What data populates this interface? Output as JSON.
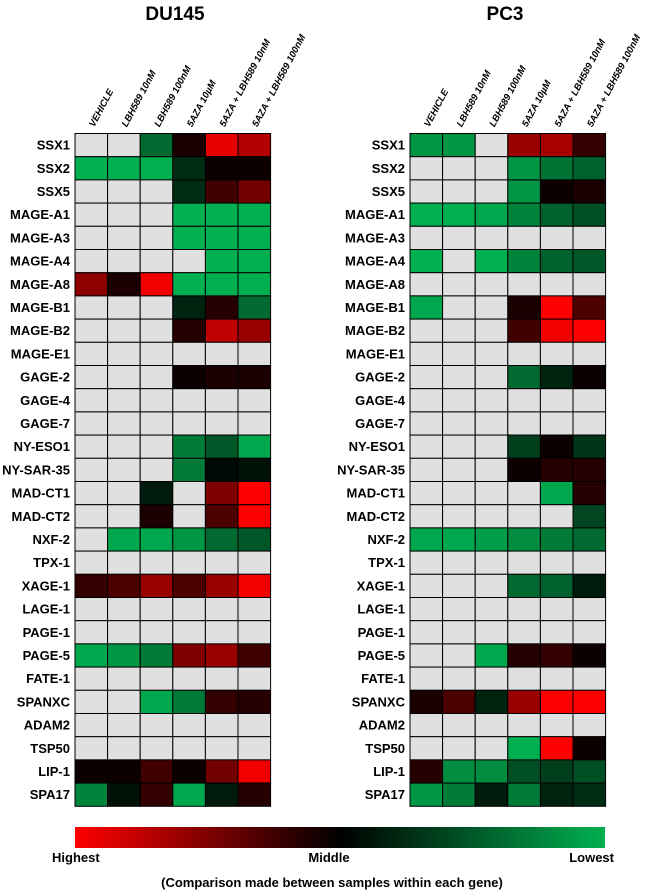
{
  "chart_data": {
    "type": "heatmap",
    "genes": [
      "SSX1",
      "SSX2",
      "SSX5",
      "MAGE-A1",
      "MAGE-A3",
      "MAGE-A4",
      "MAGE-A8",
      "MAGE-B1",
      "MAGE-B2",
      "MAGE-E1",
      "GAGE-2",
      "GAGE-4",
      "GAGE-7",
      "NY-ESO1",
      "NY-SAR-35",
      "MAD-CT1",
      "MAD-CT2",
      "NXF-2",
      "TPX-1",
      "XAGE-1",
      "LAGE-1",
      "PAGE-1",
      "PAGE-5",
      "FATE-1",
      "SPANXC",
      "ADAM2",
      "TSP50",
      "LIP-1",
      "SPA17"
    ],
    "samples": [
      "VEHICLE",
      "LBH589 10nM",
      "LBH589 100nM",
      "5AZA 10µM",
      "5AZA + LBH589 10nM",
      "5AZA + LBH589 100nM"
    ],
    "colors": {
      "highest": "#ff0000",
      "middle": "#000000",
      "lowest": "#00b050",
      "not_detected": "#e0e0e0"
    },
    "value_scale": "+1 = Highest (red), 0 = Middle (black), -1 = Lowest (green), null = grey",
    "panels": [
      {
        "title": "DU145",
        "values": [
          [
            null,
            null,
            -0.6,
            0.1,
            0.9,
            0.7
          ],
          [
            -1,
            -1,
            -1,
            -0.25,
            0.05,
            0.05
          ],
          [
            null,
            null,
            null,
            -0.25,
            0.25,
            0.45
          ],
          [
            null,
            null,
            null,
            -1,
            -1,
            -1
          ],
          [
            null,
            null,
            null,
            -1,
            -1,
            -1
          ],
          [
            null,
            null,
            null,
            null,
            -1,
            -1
          ],
          [
            0.55,
            0.1,
            0.95,
            -1,
            -1,
            -1
          ],
          [
            null,
            null,
            null,
            -0.2,
            0.15,
            -0.6
          ],
          [
            null,
            null,
            null,
            0.15,
            0.75,
            0.6
          ],
          [
            null,
            null,
            null,
            null,
            null,
            null
          ],
          [
            null,
            null,
            null,
            0.05,
            0.1,
            0.1
          ],
          [
            null,
            null,
            null,
            null,
            null,
            null
          ],
          [
            null,
            null,
            null,
            null,
            null,
            null
          ],
          [
            null,
            null,
            null,
            -0.7,
            -0.5,
            -0.95
          ],
          [
            null,
            null,
            null,
            -0.7,
            -0.05,
            -0.1
          ],
          [
            null,
            null,
            -0.15,
            null,
            0.5,
            1
          ],
          [
            null,
            null,
            0.1,
            null,
            0.3,
            1
          ],
          [
            null,
            -0.95,
            -0.95,
            -0.85,
            -0.6,
            -0.5
          ],
          [
            null,
            null,
            null,
            null,
            null,
            null
          ],
          [
            0.2,
            0.3,
            0.6,
            0.3,
            0.6,
            0.95
          ],
          [
            null,
            null,
            null,
            null,
            null,
            null
          ],
          [
            null,
            null,
            null,
            null,
            null,
            null
          ],
          [
            -0.95,
            -0.85,
            -0.7,
            0.5,
            0.6,
            0.25
          ],
          [
            null,
            null,
            null,
            null,
            null,
            null
          ],
          [
            null,
            null,
            -0.95,
            -0.7,
            0.2,
            0.15
          ],
          [
            null,
            null,
            null,
            null,
            null,
            null
          ],
          [
            null,
            null,
            null,
            null,
            null,
            null
          ],
          [
            0.05,
            0.05,
            0.25,
            0.05,
            0.45,
            0.95
          ],
          [
            -0.75,
            -0.1,
            0.2,
            -0.95,
            -0.15,
            0.15
          ]
        ]
      },
      {
        "title": "PC3",
        "values": [
          [
            -0.85,
            -0.85,
            null,
            0.6,
            0.65,
            0.2
          ],
          [
            null,
            null,
            null,
            -0.85,
            -0.65,
            -0.55
          ],
          [
            null,
            null,
            null,
            -0.85,
            0.05,
            0.1
          ],
          [
            -1,
            -1,
            -0.95,
            -0.75,
            -0.55,
            -0.45
          ],
          [
            null,
            null,
            null,
            null,
            null,
            null
          ],
          [
            -1,
            null,
            -1,
            -0.75,
            -0.55,
            -0.5
          ],
          [
            null,
            null,
            null,
            null,
            null,
            null
          ],
          [
            -0.95,
            null,
            null,
            0.1,
            1,
            0.3
          ],
          [
            null,
            null,
            null,
            0.25,
            0.95,
            1
          ],
          [
            null,
            null,
            null,
            null,
            null,
            null
          ],
          [
            null,
            null,
            null,
            -0.6,
            -0.2,
            0.05
          ],
          [
            null,
            null,
            null,
            null,
            null,
            null
          ],
          [
            null,
            null,
            null,
            null,
            null,
            null
          ],
          [
            null,
            null,
            null,
            -0.35,
            0.05,
            -0.3
          ],
          [
            null,
            null,
            null,
            0.05,
            0.15,
            0.15
          ],
          [
            null,
            null,
            null,
            null,
            -0.95,
            0.15
          ],
          [
            null,
            null,
            null,
            null,
            null,
            -0.4
          ],
          [
            -0.95,
            -0.95,
            -0.9,
            -0.8,
            -0.7,
            -0.6
          ],
          [
            null,
            null,
            null,
            null,
            null,
            null
          ],
          [
            null,
            null,
            null,
            -0.6,
            -0.55,
            -0.15
          ],
          [
            null,
            null,
            null,
            null,
            null,
            null
          ],
          [
            null,
            null,
            null,
            null,
            null,
            null
          ],
          [
            null,
            null,
            -0.95,
            0.15,
            0.2,
            0.05
          ],
          [
            null,
            null,
            null,
            null,
            null,
            null
          ],
          [
            0.1,
            0.3,
            -0.2,
            0.6,
            1,
            1
          ],
          [
            null,
            null,
            null,
            null,
            null,
            null
          ],
          [
            null,
            null,
            null,
            -1,
            1,
            0.05
          ],
          [
            0.15,
            -0.8,
            -0.8,
            -0.45,
            -0.35,
            -0.45
          ],
          [
            -0.85,
            -0.7,
            -0.15,
            -0.7,
            -0.2,
            -0.25
          ]
        ]
      }
    ],
    "legend": {
      "highest_label": "Highest",
      "middle_label": "Middle",
      "lowest_label": "Lowest",
      "caption": "(Comparison made between samples within each gene)"
    }
  }
}
